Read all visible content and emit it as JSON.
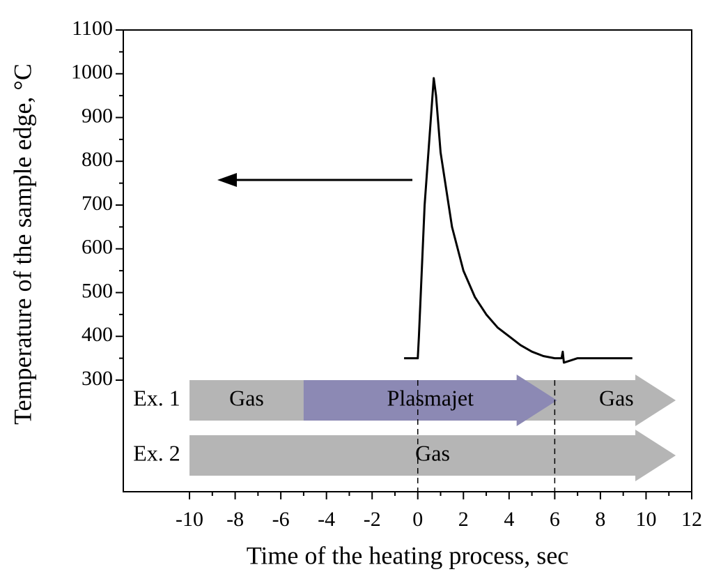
{
  "chart_data": {
    "type": "line",
    "x_label": "Time of the heating process, sec",
    "y_label": "Temperature of the sample edge, °C",
    "x": [
      -0.6,
      -0.05,
      0,
      0.05,
      0.3,
      0.7,
      0.8,
      1,
      1.5,
      2,
      2.5,
      3,
      3.5,
      4,
      4.5,
      5,
      5.5,
      6,
      6.3,
      6.35,
      6.4,
      7,
      8,
      9.4
    ],
    "values": [
      350,
      350,
      350,
      400,
      700,
      990,
      950,
      820,
      650,
      550,
      490,
      450,
      420,
      400,
      380,
      365,
      355,
      350,
      350,
      365,
      340,
      350,
      350,
      350
    ],
    "color": "#000000",
    "xlim": [
      -12.9,
      12
    ],
    "xticks": [
      -10,
      -8,
      -6,
      -4,
      -2,
      0,
      2,
      4,
      6,
      8,
      10,
      12
    ],
    "ylim": [
      45,
      1100
    ],
    "yticks": [
      300,
      400,
      500,
      600,
      700,
      800,
      900,
      1000,
      1100
    ],
    "markers": [
      0,
      6
    ],
    "phases": [
      {
        "label": "Ex. 1",
        "segments": [
          {
            "label": "Gas",
            "start": -10,
            "end": -5,
            "color": "#b5b5b5",
            "arrow": false
          },
          {
            "label": "Plasmajet",
            "start": -5,
            "end": 6.1,
            "color": "#8c89b4",
            "arrow": true
          },
          {
            "label": "Gas",
            "start": 6.1,
            "end": 11.3,
            "color": "#b5b5b5",
            "arrow": true
          }
        ]
      },
      {
        "label": "Ex. 2",
        "segments": [
          {
            "label": "Gas",
            "start": -10,
            "end": 11.3,
            "color": "#b5b5b5",
            "arrow": true
          }
        ]
      }
    ]
  }
}
